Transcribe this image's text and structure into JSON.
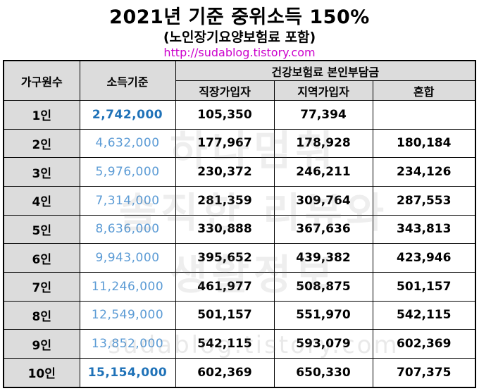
{
  "title": "2021년 기준 중위소득 150%",
  "subtitle": "(노인장기요양보험료 포함)",
  "url": "http://sudablog.tistory.com",
  "watermark": {
    "lines": [
      "하나멈춰",
      "솔직한 리뷰와",
      "생활정보"
    ],
    "url": "sudablog.tistory.com"
  },
  "table": {
    "headers": {
      "household": "가구원수",
      "income": "소득기준",
      "premium_group": "건강보험료 본인부담금",
      "employee": "직장가입자",
      "regional": "지역가입자",
      "mixed": "혼합"
    },
    "rows": [
      {
        "household": "1인",
        "income": "2,742,000",
        "employee": "105,350",
        "regional": "77,394",
        "mixed": ""
      },
      {
        "household": "2인",
        "income": "4,632,000",
        "employee": "177,967",
        "regional": "178,928",
        "mixed": "180,184"
      },
      {
        "household": "3인",
        "income": "5,976,000",
        "employee": "230,372",
        "regional": "246,211",
        "mixed": "234,126"
      },
      {
        "household": "4인",
        "income": "7,314,000",
        "employee": "281,359",
        "regional": "309,764",
        "mixed": "287,553"
      },
      {
        "household": "5인",
        "income": "8,636,000",
        "employee": "330,888",
        "regional": "367,636",
        "mixed": "343,813"
      },
      {
        "household": "6인",
        "income": "9,943,000",
        "employee": "395,652",
        "regional": "439,382",
        "mixed": "423,946"
      },
      {
        "household": "7인",
        "income": "11,246,000",
        "employee": "461,977",
        "regional": "508,875",
        "mixed": "501,157"
      },
      {
        "household": "8인",
        "income": "12,549,000",
        "employee": "501,157",
        "regional": "551,970",
        "mixed": "542,115"
      },
      {
        "household": "9인",
        "income": "13,852,000",
        "employee": "542,115",
        "regional": "593,079",
        "mixed": "602,369"
      },
      {
        "household": "10인",
        "income": "15,154,000",
        "employee": "602,369",
        "regional": "650,330",
        "mixed": "707,375"
      }
    ]
  },
  "colors": {
    "header_bg": "#dcdcdc",
    "income_text": "#5b9bd5",
    "income_text_emphasis": "#1f72b8",
    "url_text": "#cc00cc"
  }
}
